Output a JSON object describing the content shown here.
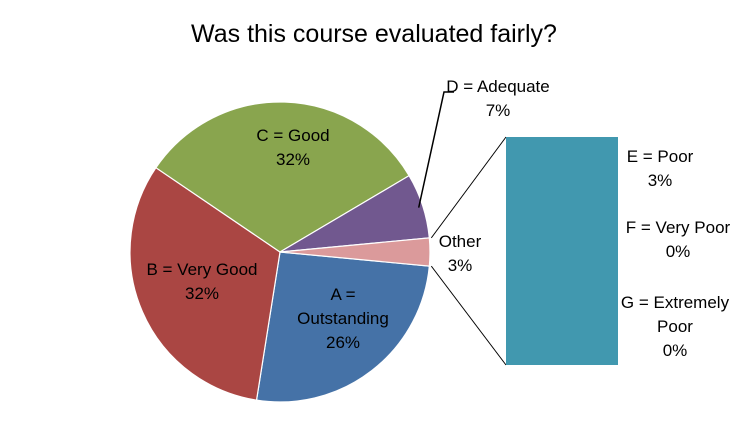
{
  "chart_data": {
    "type": "pie",
    "subtype": "pie-of-pie (bar of pie)",
    "title": "Was this course evaluated fairly?",
    "slices": [
      {
        "label": "A = Outstanding",
        "lines": [
          "A =",
          "Outstanding"
        ],
        "value_text": "26%",
        "value": 26,
        "color": "#4572A7"
      },
      {
        "label": "B = Very Good",
        "lines": [
          "B = Very Good"
        ],
        "value_text": "32%",
        "value": 32,
        "color": "#AA4643"
      },
      {
        "label": "C = Good",
        "lines": [
          "C = Good"
        ],
        "value_text": "32%",
        "value": 32,
        "color": "#89A54E"
      },
      {
        "label": "D = Adequate",
        "lines": [
          "D = Adequate"
        ],
        "value_text": "7%",
        "value": 7,
        "color": "#71588F"
      },
      {
        "label": "Other",
        "lines": [
          "Other"
        ],
        "value_text": "3%",
        "value": 3,
        "color": "#DB9A9B"
      }
    ],
    "secondary": {
      "color": "#4198AF",
      "items": [
        {
          "label": "E = Poor",
          "lines": [
            "E = Poor"
          ],
          "value_text": "3%",
          "value": 3
        },
        {
          "label": "F = Very Poor",
          "lines": [
            "F = Very Poor"
          ],
          "value_text": "0%",
          "value": 0
        },
        {
          "label": "G = Extremely Poor",
          "lines": [
            "G = Extremely",
            "Poor"
          ],
          "value_text": "0%",
          "value": 0
        }
      ]
    },
    "legend": "none"
  }
}
